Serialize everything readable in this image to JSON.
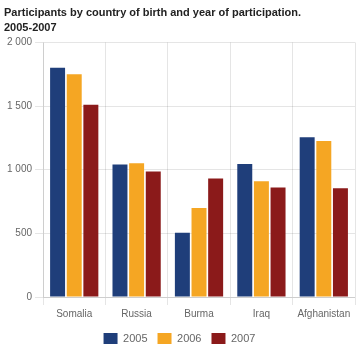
{
  "chart_data": {
    "type": "bar",
    "title": "Participants by country of birth and year of participation.",
    "subtitle": "2005-2007",
    "categories": [
      "Somalia",
      "Russia",
      "Burma",
      "Iraq",
      "Afghanistan"
    ],
    "series": [
      {
        "name": "2005",
        "color": "#1F3E7A",
        "values": [
          1800,
          1040,
          505,
          1045,
          1255
        ]
      },
      {
        "name": "2006",
        "color": "#F5A623",
        "values": [
          1750,
          1050,
          700,
          910,
          1225
        ]
      },
      {
        "name": "2007",
        "color": "#8B1A1A",
        "values": [
          1510,
          985,
          930,
          860,
          855
        ]
      }
    ],
    "ylim": [
      0,
      2000
    ],
    "yticks": [
      0,
      500,
      {
        "value": 1000,
        "label": "1 000"
      },
      {
        "value": 1500,
        "label": "1 500"
      },
      {
        "value": 2000,
        "label": "2 000"
      }
    ],
    "grid": true,
    "legend": "bottom"
  }
}
